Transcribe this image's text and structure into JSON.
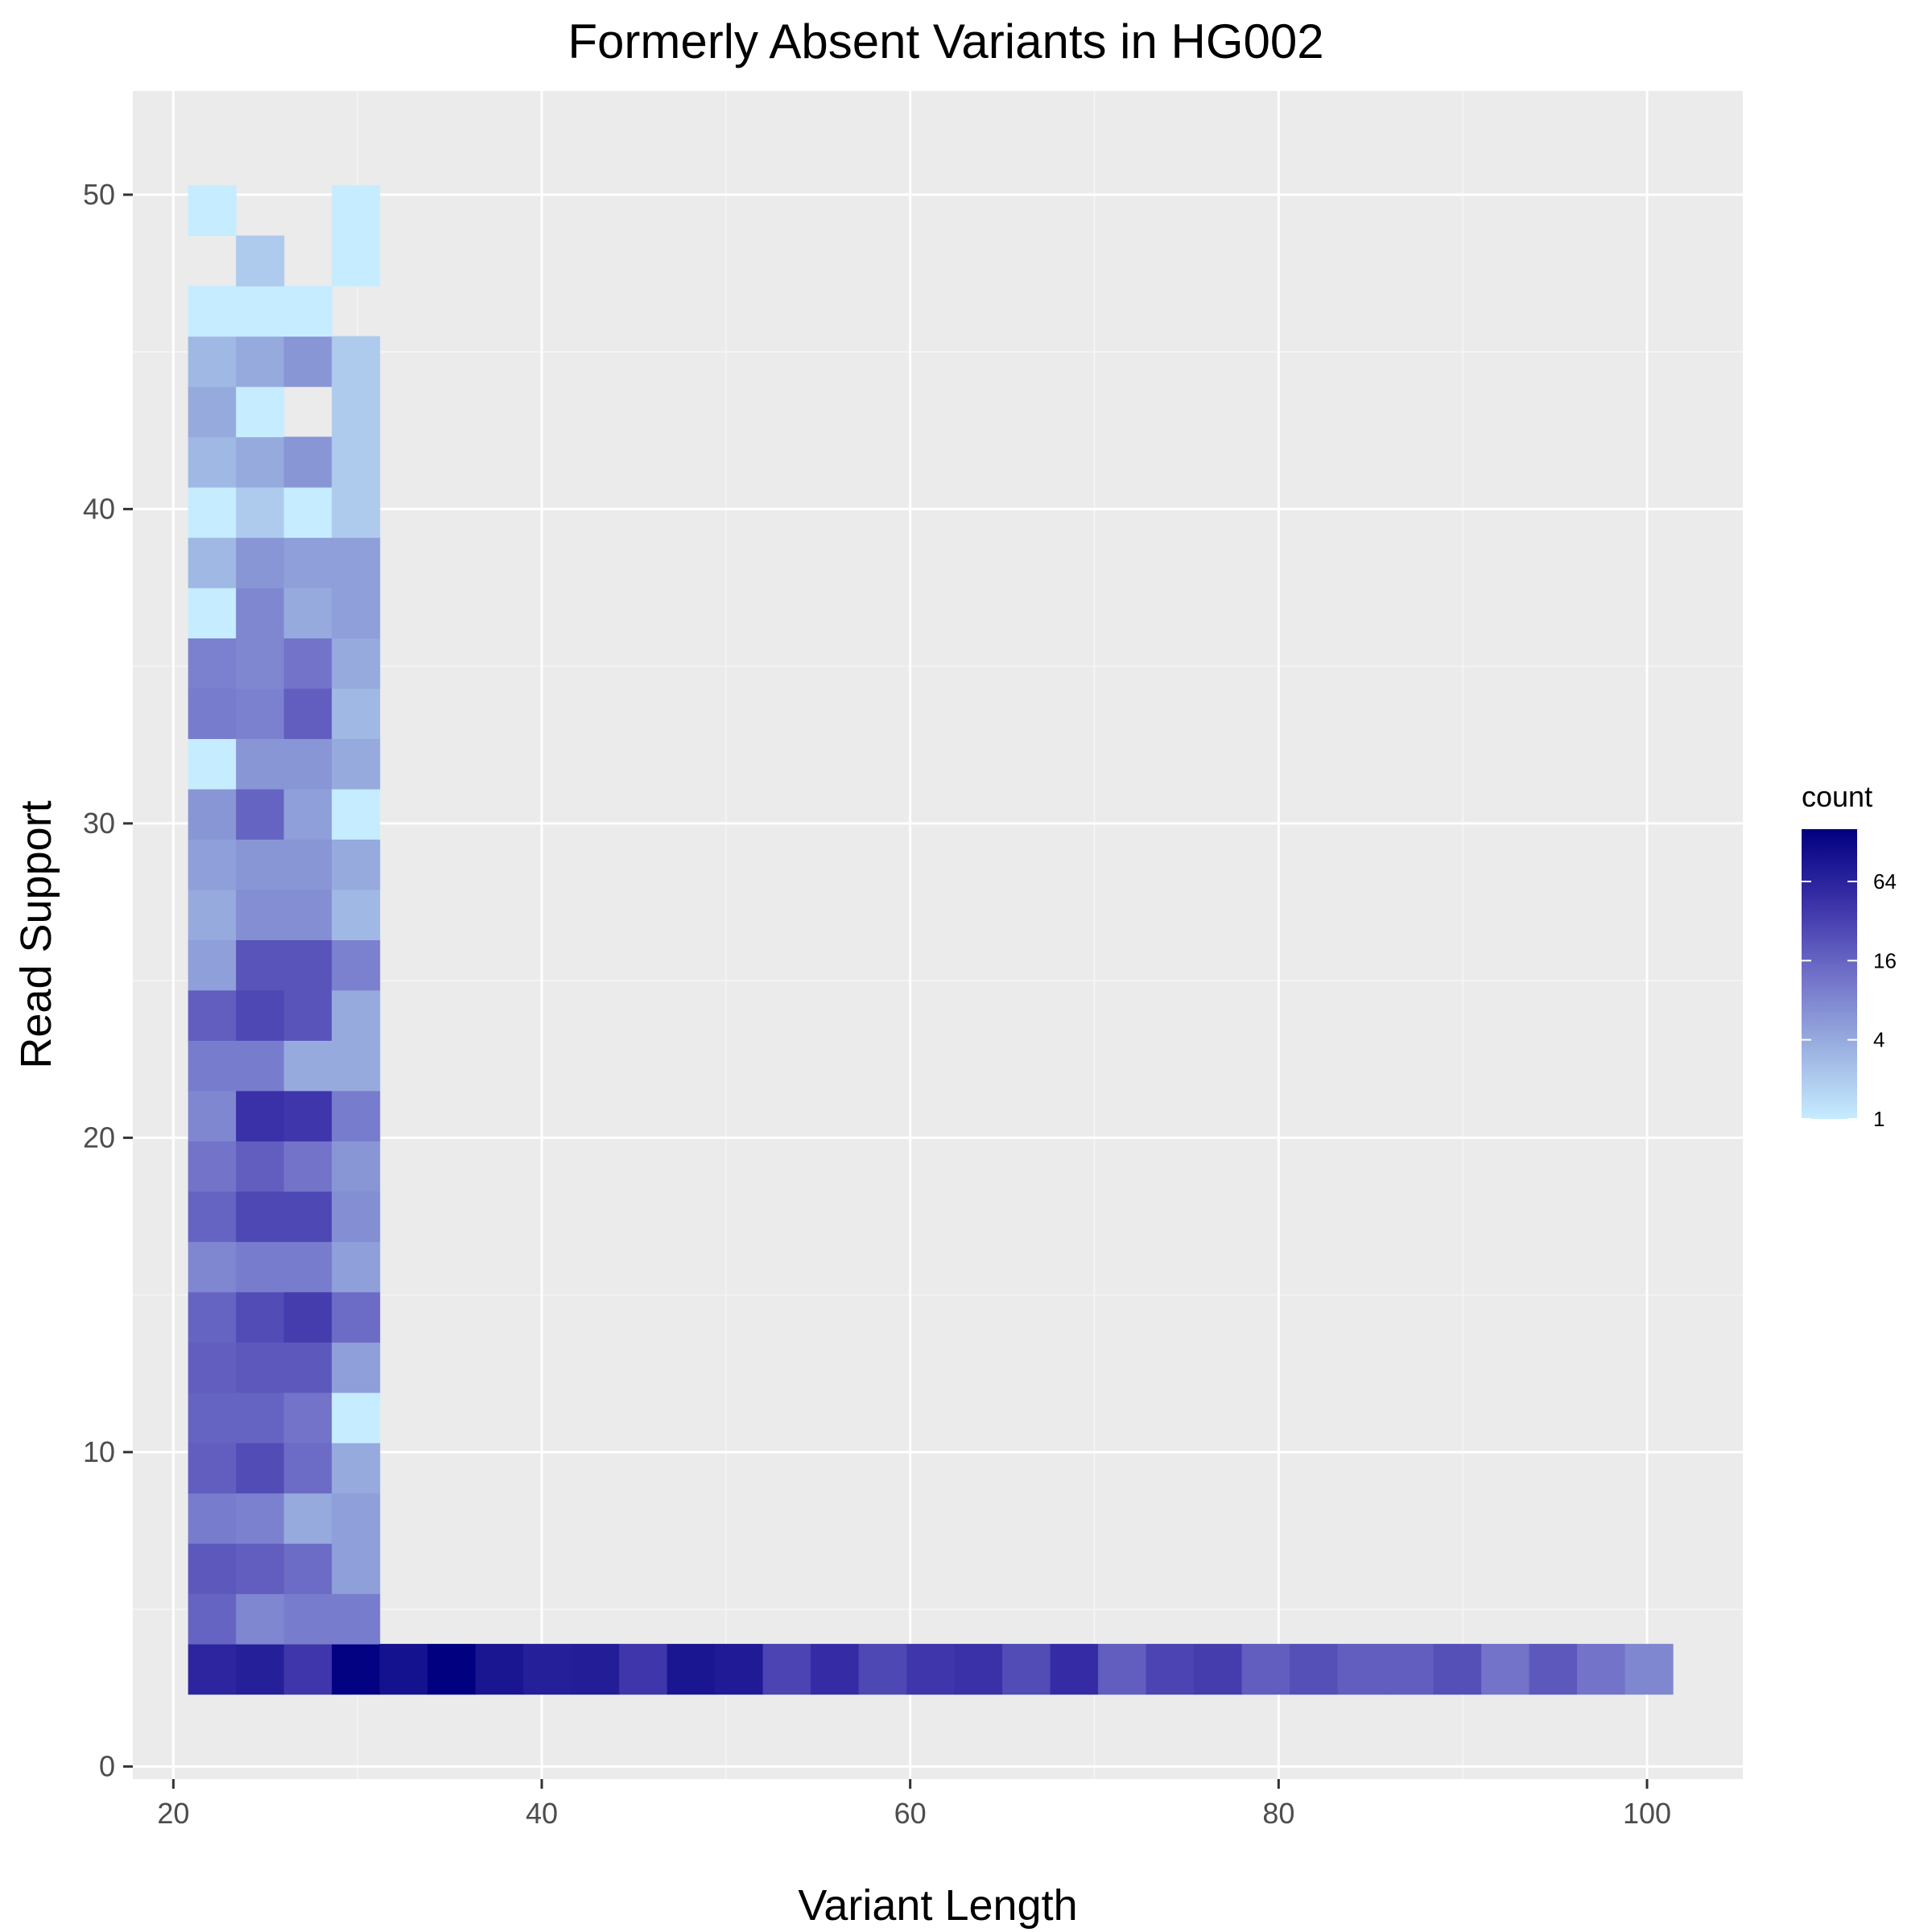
{
  "chart_data": {
    "type": "heatmap",
    "title": "Formerly Absent Variants in HG002",
    "xlabel": "Variant Length",
    "ylabel": "Read Support",
    "xlim": [
      17.8,
      105.2
    ],
    "ylim": [
      -0.4,
      53.3
    ],
    "x_ticks": [
      20,
      40,
      60,
      80,
      100
    ],
    "y_ticks": [
      0,
      10,
      20,
      30,
      40,
      50
    ],
    "grid": true,
    "bin_width": 2.6,
    "bin_height": 1.6,
    "legend": {
      "title": "count",
      "position": "right",
      "scale": "log",
      "breaks": [
        1,
        4,
        16,
        64
      ],
      "min": 1,
      "max": 160,
      "low_color": "#c6ecff",
      "high_color": "#000080"
    },
    "columns": [
      {
        "x": 22.1,
        "cells": [
          [
            3.1,
            60
          ],
          [
            4.7,
            16
          ],
          [
            6.3,
            20
          ],
          [
            7.9,
            10
          ],
          [
            9.5,
            18
          ],
          [
            11.1,
            16
          ],
          [
            12.7,
            18
          ],
          [
            14.3,
            16
          ],
          [
            15.9,
            8
          ],
          [
            17.5,
            16
          ],
          [
            19.1,
            12
          ],
          [
            20.7,
            8
          ],
          [
            22.3,
            10
          ],
          [
            23.9,
            18
          ],
          [
            25.5,
            5
          ],
          [
            27.1,
            4
          ],
          [
            28.7,
            5
          ],
          [
            30.3,
            6
          ],
          [
            31.9,
            1
          ],
          [
            33.5,
            10
          ],
          [
            35.1,
            9
          ],
          [
            36.7,
            1
          ],
          [
            38.3,
            3
          ],
          [
            39.9,
            1
          ],
          [
            41.5,
            3
          ],
          [
            43.1,
            4
          ],
          [
            44.7,
            3
          ],
          [
            46.3,
            1
          ],
          [
            49.5,
            1
          ]
        ]
      },
      {
        "x": 24.7,
        "cells": [
          [
            3.1,
            70
          ],
          [
            4.7,
            8
          ],
          [
            6.3,
            18
          ],
          [
            7.9,
            9
          ],
          [
            9.5,
            26
          ],
          [
            11.1,
            16
          ],
          [
            12.7,
            20
          ],
          [
            14.3,
            26
          ],
          [
            15.9,
            10
          ],
          [
            17.5,
            28
          ],
          [
            19.1,
            18
          ],
          [
            20.7,
            45
          ],
          [
            22.3,
            10
          ],
          [
            23.9,
            28
          ],
          [
            25.5,
            22
          ],
          [
            27.1,
            7
          ],
          [
            28.7,
            6
          ],
          [
            30.3,
            16
          ],
          [
            31.9,
            6
          ],
          [
            33.5,
            9
          ],
          [
            35.1,
            8
          ],
          [
            36.7,
            8
          ],
          [
            38.3,
            6
          ],
          [
            39.9,
            2
          ],
          [
            41.5,
            4
          ],
          [
            43.1,
            1
          ],
          [
            44.7,
            4
          ],
          [
            46.3,
            1
          ],
          [
            47.9,
            2
          ]
        ]
      },
      {
        "x": 27.3,
        "cells": [
          [
            3.1,
            40
          ],
          [
            4.7,
            10
          ],
          [
            6.3,
            14
          ],
          [
            7.9,
            4
          ],
          [
            9.5,
            14
          ],
          [
            11.1,
            12
          ],
          [
            12.7,
            20
          ],
          [
            14.3,
            35
          ],
          [
            15.9,
            10
          ],
          [
            17.5,
            28
          ],
          [
            19.1,
            12
          ],
          [
            20.7,
            40
          ],
          [
            22.3,
            4
          ],
          [
            23.9,
            22
          ],
          [
            25.5,
            22
          ],
          [
            27.1,
            7
          ],
          [
            28.7,
            6
          ],
          [
            30.3,
            5
          ],
          [
            31.9,
            6
          ],
          [
            33.5,
            18
          ],
          [
            35.1,
            12
          ],
          [
            36.7,
            4
          ],
          [
            38.3,
            5
          ],
          [
            39.9,
            1
          ],
          [
            41.5,
            6
          ],
          [
            44.7,
            6
          ],
          [
            46.3,
            1
          ]
        ]
      },
      {
        "x": 29.9,
        "cells": [
          [
            3.1,
            150
          ],
          [
            4.7,
            10
          ],
          [
            6.3,
            5
          ],
          [
            7.9,
            5
          ],
          [
            9.5,
            4
          ],
          [
            11.1,
            1
          ],
          [
            12.7,
            5
          ],
          [
            14.3,
            14
          ],
          [
            15.9,
            5
          ],
          [
            17.5,
            7
          ],
          [
            19.1,
            6
          ],
          [
            20.7,
            10
          ],
          [
            22.3,
            4
          ],
          [
            23.9,
            4
          ],
          [
            25.5,
            9
          ],
          [
            27.1,
            3
          ],
          [
            28.7,
            4
          ],
          [
            30.3,
            1
          ],
          [
            31.9,
            4
          ],
          [
            33.5,
            3
          ],
          [
            35.1,
            4
          ],
          [
            36.7,
            5
          ],
          [
            38.3,
            5
          ],
          [
            39.9,
            2
          ],
          [
            41.5,
            2
          ],
          [
            43.1,
            2
          ],
          [
            44.7,
            2
          ],
          [
            47.9,
            1
          ],
          [
            49.5,
            1
          ]
        ]
      },
      {
        "x": 32.5,
        "cells": [
          [
            3.1,
            100
          ]
        ]
      },
      {
        "x": 35.1,
        "cells": [
          [
            3.1,
            160
          ]
        ]
      },
      {
        "x": 37.7,
        "cells": [
          [
            3.1,
            90
          ]
        ]
      },
      {
        "x": 40.3,
        "cells": [
          [
            3.1,
            70
          ]
        ]
      },
      {
        "x": 42.9,
        "cells": [
          [
            3.1,
            75
          ]
        ]
      },
      {
        "x": 45.5,
        "cells": [
          [
            3.1,
            40
          ]
        ]
      },
      {
        "x": 48.1,
        "cells": [
          [
            3.1,
            90
          ]
        ]
      },
      {
        "x": 50.7,
        "cells": [
          [
            3.1,
            80
          ]
        ]
      },
      {
        "x": 53.3,
        "cells": [
          [
            3.1,
            30
          ]
        ]
      },
      {
        "x": 55.9,
        "cells": [
          [
            3.1,
            50
          ]
        ]
      },
      {
        "x": 58.5,
        "cells": [
          [
            3.1,
            28
          ]
        ]
      },
      {
        "x": 61.1,
        "cells": [
          [
            3.1,
            40
          ]
        ]
      },
      {
        "x": 63.7,
        "cells": [
          [
            3.1,
            45
          ]
        ]
      },
      {
        "x": 66.3,
        "cells": [
          [
            3.1,
            26
          ]
        ]
      },
      {
        "x": 68.9,
        "cells": [
          [
            3.1,
            50
          ]
        ]
      },
      {
        "x": 71.5,
        "cells": [
          [
            3.1,
            18
          ]
        ]
      },
      {
        "x": 74.1,
        "cells": [
          [
            3.1,
            30
          ]
        ]
      },
      {
        "x": 76.7,
        "cells": [
          [
            3.1,
            35
          ]
        ]
      },
      {
        "x": 79.3,
        "cells": [
          [
            3.1,
            18
          ]
        ]
      },
      {
        "x": 81.9,
        "cells": [
          [
            3.1,
            24
          ]
        ]
      },
      {
        "x": 84.5,
        "cells": [
          [
            3.1,
            18
          ]
        ]
      },
      {
        "x": 87.1,
        "cells": [
          [
            3.1,
            18
          ]
        ]
      },
      {
        "x": 89.7,
        "cells": [
          [
            3.1,
            24
          ]
        ]
      },
      {
        "x": 92.3,
        "cells": [
          [
            3.1,
            12
          ]
        ]
      },
      {
        "x": 94.9,
        "cells": [
          [
            3.1,
            20
          ]
        ]
      },
      {
        "x": 97.5,
        "cells": [
          [
            3.1,
            12
          ]
        ]
      },
      {
        "x": 100.1,
        "cells": [
          [
            3.1,
            8
          ]
        ]
      }
    ]
  }
}
